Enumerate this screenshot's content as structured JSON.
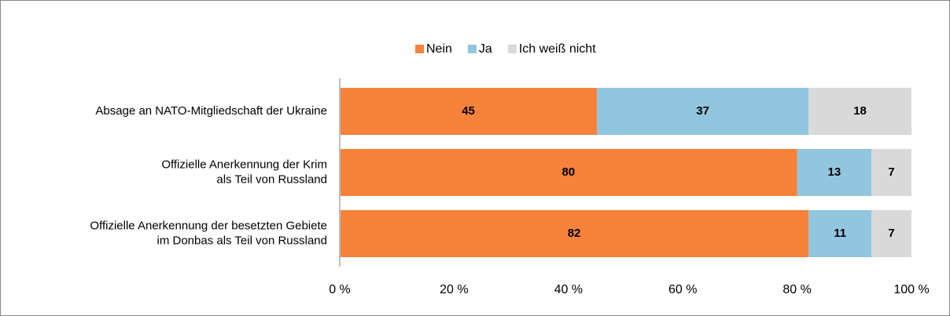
{
  "chart_data": {
    "type": "stacked-bar-horizontal",
    "categories": [
      "Absage an NATO-Mitgliedschaft der Ukraine",
      "Offizielle Anerkennung der Krim\nals Teil von Russland",
      "Offizielle Anerkennung der besetzten Gebiete\nim Donbas als Teil von Russland"
    ],
    "series": [
      {
        "name": "Nein",
        "color": "#f7823c",
        "values": [
          45,
          80,
          82
        ]
      },
      {
        "name": "Ja",
        "color": "#92c5de",
        "values": [
          37,
          13,
          11
        ]
      },
      {
        "name": "Ich weiß nicht",
        "color": "#d9d9d9",
        "values": [
          18,
          7,
          7
        ]
      }
    ],
    "xlim": [
      0,
      100
    ],
    "xticks": [
      {
        "value": 0,
        "label": "0 %"
      },
      {
        "value": 20,
        "label": "20 %"
      },
      {
        "value": 40,
        "label": "40 %"
      },
      {
        "value": 60,
        "label": "60 %"
      },
      {
        "value": 80,
        "label": "80 %"
      },
      {
        "value": 100,
        "label": "100 %"
      }
    ],
    "legend": "top"
  }
}
